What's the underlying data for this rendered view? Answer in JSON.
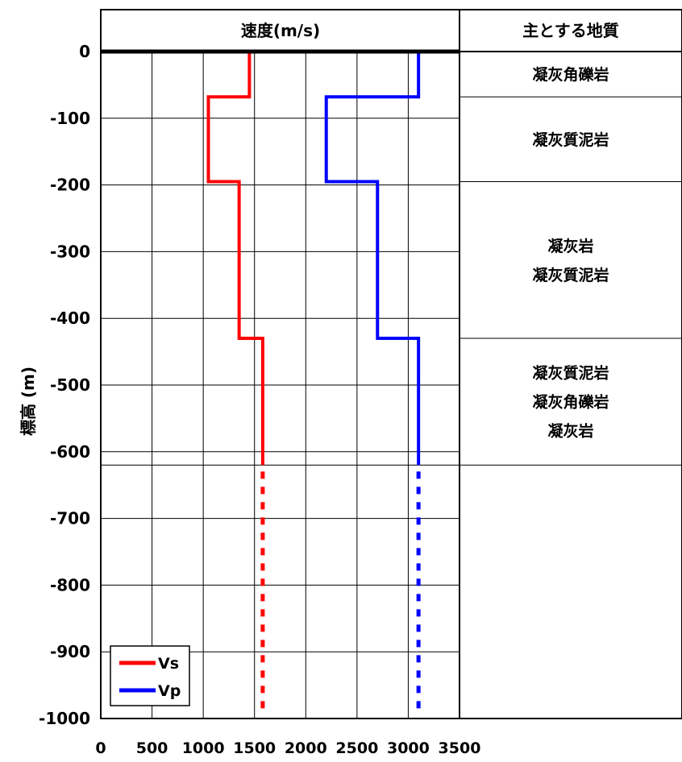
{
  "chart_data": {
    "type": "line",
    "title": "速度(m/s)",
    "ylabel": "標高 (m)",
    "xlabel": "",
    "xlim": [
      0,
      3500
    ],
    "ylim": [
      -1000,
      0
    ],
    "x_ticks": [
      "0",
      "500",
      "1000",
      "1500",
      "2000",
      "2500",
      "3000",
      "3500"
    ],
    "y_ticks": [
      "0",
      "-100",
      "-200",
      "-300",
      "-400",
      "-500",
      "-600",
      "-700",
      "-800",
      "-900",
      "-1000"
    ],
    "grid": true,
    "legend_position": "bottom-left",
    "series": [
      {
        "name": "Vs",
        "color": "#ff0000",
        "points": [
          [
            1450,
            0
          ],
          [
            1450,
            -68
          ],
          [
            1050,
            -68
          ],
          [
            1050,
            -195
          ],
          [
            1350,
            -195
          ],
          [
            1350,
            -430
          ],
          [
            1580,
            -430
          ],
          [
            1580,
            -620
          ]
        ],
        "extension": [
          [
            1580,
            -620
          ],
          [
            1580,
            -1000
          ]
        ]
      },
      {
        "name": "Vp",
        "color": "#0000ff",
        "points": [
          [
            3100,
            0
          ],
          [
            3100,
            -68
          ],
          [
            2200,
            -68
          ],
          [
            2200,
            -195
          ],
          [
            2700,
            -195
          ],
          [
            2700,
            -430
          ],
          [
            3100,
            -430
          ],
          [
            3100,
            -620
          ]
        ],
        "extension": [
          [
            3100,
            -620
          ],
          [
            3100,
            -1000
          ]
        ]
      }
    ]
  },
  "geology": {
    "header": "主とする地質",
    "layers": [
      {
        "top": 0,
        "bottom": -68,
        "lines": [
          "凝灰角礫岩"
        ]
      },
      {
        "top": -68,
        "bottom": -195,
        "lines": [
          "凝灰質泥岩"
        ]
      },
      {
        "top": -195,
        "bottom": -430,
        "lines": [
          "凝灰岩",
          "凝灰質泥岩"
        ]
      },
      {
        "top": -430,
        "bottom": -620,
        "lines": [
          "凝灰質泥岩",
          "凝灰角礫岩",
          "凝灰岩"
        ]
      }
    ]
  }
}
